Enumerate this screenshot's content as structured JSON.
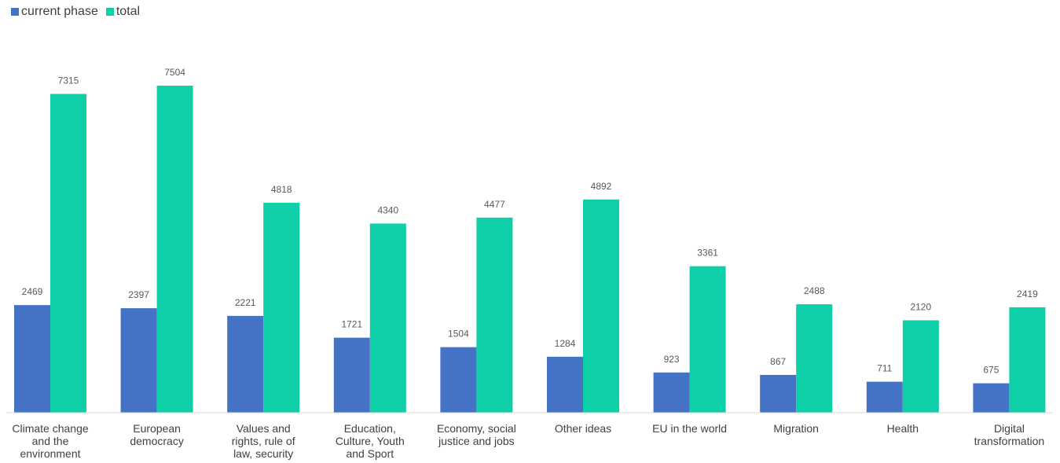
{
  "chart_data": {
    "type": "bar",
    "categories": [
      "Climate change and the environment",
      "European democracy",
      "Values and rights, rule of law, security",
      "Education, Culture, Youth and Sport",
      "Economy, social justice and jobs",
      "Other ideas",
      "EU in the world",
      "Migration",
      "Health",
      "Digital transformation"
    ],
    "series": [
      {
        "name": "current phase",
        "color": "#4472C4",
        "values": [
          2469,
          2397,
          2221,
          1721,
          1504,
          1284,
          923,
          867,
          711,
          675
        ]
      },
      {
        "name": "total",
        "color": "#0FCFA8",
        "values": [
          7315,
          7504,
          4818,
          4340,
          4477,
          4892,
          3361,
          2488,
          2120,
          2419
        ]
      }
    ],
    "legend_position": "top-left",
    "grid": false,
    "ylim": [
      0,
      8000
    ]
  }
}
